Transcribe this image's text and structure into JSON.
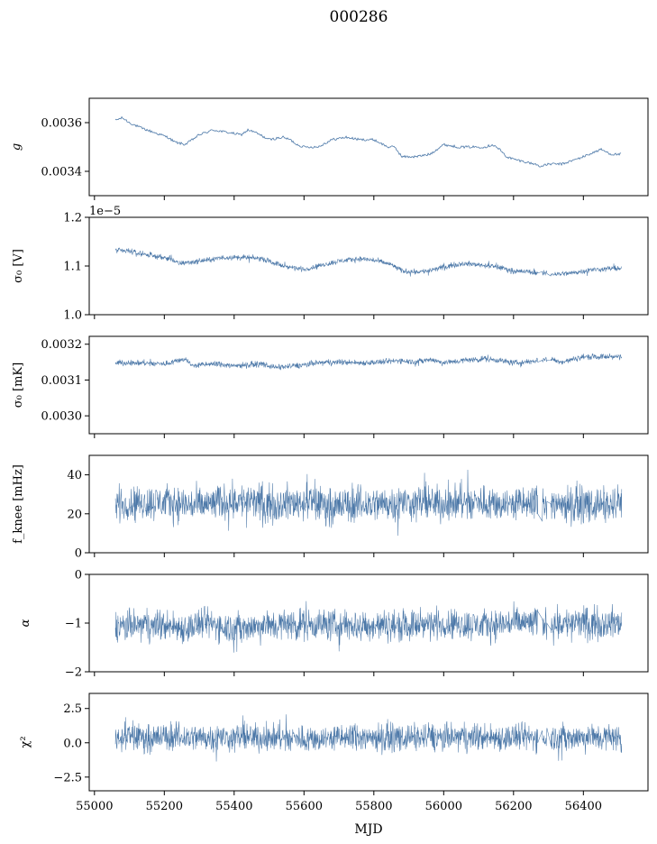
{
  "figure": {
    "title": "000286",
    "series_color": "#4c78a8",
    "gap_color": "#e8a0a0"
  },
  "chart_data": [
    {
      "id": "g",
      "type": "line",
      "ylabel": "g",
      "ylabel_italic": true,
      "ylim": [
        0.0033,
        0.0037
      ],
      "yticks": [
        0.0034,
        0.0036
      ],
      "ytick_labels": [
        "0.0034",
        "0.0036"
      ],
      "offset_text": "",
      "band": 5e-06,
      "spikes": 0,
      "keypoints": [
        [
          55060,
          0.00361
        ],
        [
          55080,
          0.00362
        ],
        [
          55100,
          0.0036
        ],
        [
          55130,
          0.00358
        ],
        [
          55170,
          0.00356
        ],
        [
          55210,
          0.00354
        ],
        [
          55230,
          0.00352
        ],
        [
          55260,
          0.00351
        ],
        [
          55300,
          0.00355
        ],
        [
          55340,
          0.00357
        ],
        [
          55380,
          0.00356
        ],
        [
          55420,
          0.00355
        ],
        [
          55440,
          0.00357
        ],
        [
          55460,
          0.00356
        ],
        [
          55500,
          0.00353
        ],
        [
          55540,
          0.00354
        ],
        [
          55560,
          0.00353
        ],
        [
          55580,
          0.00351
        ],
        [
          55600,
          0.0035
        ],
        [
          55640,
          0.0035
        ],
        [
          55680,
          0.00353
        ],
        [
          55720,
          0.00354
        ],
        [
          55760,
          0.00353
        ],
        [
          55800,
          0.00353
        ],
        [
          55840,
          0.0035
        ],
        [
          55860,
          0.0035
        ],
        [
          55880,
          0.00346
        ],
        [
          55920,
          0.00346
        ],
        [
          55960,
          0.00347
        ],
        [
          56000,
          0.00351
        ],
        [
          56040,
          0.0035
        ],
        [
          56080,
          0.0035
        ],
        [
          56120,
          0.0035
        ],
        [
          56140,
          0.00351
        ],
        [
          56160,
          0.00349
        ],
        [
          56180,
          0.00346
        ],
        [
          56200,
          0.00345
        ],
        [
          56260,
          0.00343
        ],
        [
          56280,
          0.00342
        ],
        [
          56300,
          0.00343
        ],
        [
          56340,
          0.00343
        ],
        [
          56400,
          0.00346
        ],
        [
          56450,
          0.00349
        ],
        [
          56480,
          0.00347
        ],
        [
          56510,
          0.00347
        ]
      ]
    },
    {
      "id": "sigma0_v",
      "type": "line",
      "ylabel": "σ₀ [V]",
      "ylim": [
        1.0,
        1.2
      ],
      "yticks": [
        1.0,
        1.1,
        1.2
      ],
      "ytick_labels": [
        "1.0",
        "1.1",
        "1.2"
      ],
      "offset_text": "1e−5",
      "band": 0.006,
      "spikes": 0.01,
      "keypoints": [
        [
          55060,
          1.132
        ],
        [
          55100,
          1.13
        ],
        [
          55160,
          1.122
        ],
        [
          55220,
          1.115
        ],
        [
          55240,
          1.105
        ],
        [
          55300,
          1.11
        ],
        [
          55380,
          1.118
        ],
        [
          55440,
          1.117
        ],
        [
          55480,
          1.115
        ],
        [
          55540,
          1.1
        ],
        [
          55600,
          1.093
        ],
        [
          55640,
          1.1
        ],
        [
          55700,
          1.11
        ],
        [
          55760,
          1.115
        ],
        [
          55800,
          1.112
        ],
        [
          55850,
          1.103
        ],
        [
          55880,
          1.09
        ],
        [
          55920,
          1.088
        ],
        [
          55960,
          1.09
        ],
        [
          56000,
          1.098
        ],
        [
          56050,
          1.105
        ],
        [
          56100,
          1.103
        ],
        [
          56160,
          1.097
        ],
        [
          56200,
          1.09
        ],
        [
          56260,
          1.087
        ],
        [
          56300,
          1.083
        ],
        [
          56360,
          1.085
        ],
        [
          56420,
          1.092
        ],
        [
          56480,
          1.095
        ],
        [
          56510,
          1.094
        ]
      ]
    },
    {
      "id": "sigma0_mk",
      "type": "line",
      "ylabel": "σ₀ [mK]",
      "ylim": [
        0.00295,
        0.003222
      ],
      "yticks": [
        0.003,
        0.0031,
        0.0032
      ],
      "ytick_labels": [
        "0.0030",
        "0.0031",
        "0.0032"
      ],
      "offset_text": "",
      "band": 9e-06,
      "spikes": 1e-05,
      "keypoints": [
        [
          55060,
          0.003148
        ],
        [
          55100,
          0.003148
        ],
        [
          55200,
          0.003145
        ],
        [
          55260,
          0.00316
        ],
        [
          55280,
          0.00314
        ],
        [
          55340,
          0.003145
        ],
        [
          55400,
          0.00314
        ],
        [
          55480,
          0.003145
        ],
        [
          55520,
          0.003135
        ],
        [
          55580,
          0.00314
        ],
        [
          55640,
          0.003148
        ],
        [
          55700,
          0.00315
        ],
        [
          55760,
          0.003148
        ],
        [
          55820,
          0.00315
        ],
        [
          55880,
          0.003155
        ],
        [
          55920,
          0.00315
        ],
        [
          55960,
          0.003158
        ],
        [
          56000,
          0.003148
        ],
        [
          56060,
          0.003155
        ],
        [
          56120,
          0.00316
        ],
        [
          56160,
          0.003155
        ],
        [
          56200,
          0.003148
        ],
        [
          56240,
          0.00315
        ],
        [
          56300,
          0.00316
        ],
        [
          56340,
          0.00315
        ],
        [
          56400,
          0.003165
        ],
        [
          56460,
          0.003165
        ],
        [
          56510,
          0.003165
        ]
      ]
    },
    {
      "id": "fknee",
      "type": "line",
      "ylabel": "f_knee [mHz]",
      "ylim": [
        0,
        50
      ],
      "yticks": [
        0,
        20,
        40
      ],
      "ytick_labels": [
        "0",
        "20",
        "40"
      ],
      "offset_text": "",
      "band": 10,
      "spikes": 14,
      "keypoints": [
        [
          55060,
          25
        ],
        [
          55200,
          26
        ],
        [
          55300,
          24
        ],
        [
          55400,
          27
        ],
        [
          55500,
          25
        ],
        [
          55600,
          26
        ],
        [
          55700,
          24
        ],
        [
          55800,
          25
        ],
        [
          55900,
          26
        ],
        [
          56000,
          25
        ],
        [
          56100,
          26
        ],
        [
          56200,
          25
        ],
        [
          56300,
          25
        ],
        [
          56400,
          25
        ],
        [
          56510,
          24
        ]
      ]
    },
    {
      "id": "alpha",
      "type": "line",
      "ylabel": "α",
      "ylabel_italic": true,
      "ylim": [
        -2,
        0
      ],
      "yticks": [
        -2,
        -1,
        0
      ],
      "ytick_labels": [
        "−2",
        "−1",
        "0"
      ],
      "offset_text": "",
      "band": 0.35,
      "spikes": 0.4,
      "keypoints": [
        [
          55060,
          -1.05
        ],
        [
          55200,
          -1.05
        ],
        [
          55260,
          -1.1
        ],
        [
          55320,
          -1.0
        ],
        [
          55400,
          -1.1
        ],
        [
          55500,
          -1.05
        ],
        [
          55600,
          -1.0
        ],
        [
          55700,
          -1.05
        ],
        [
          55800,
          -1.05
        ],
        [
          55900,
          -1.05
        ],
        [
          56000,
          -1.0
        ],
        [
          56100,
          -1.05
        ],
        [
          56200,
          -1.0
        ],
        [
          56300,
          -1.0
        ],
        [
          56400,
          -1.0
        ],
        [
          56510,
          -1.0
        ]
      ]
    },
    {
      "id": "chi2",
      "type": "line",
      "ylabel": "χ²",
      "ylim": [
        -3.5,
        3.6
      ],
      "yticks": [
        -2.5,
        0.0,
        2.5
      ],
      "ytick_labels": [
        "−2.5",
        "0.0",
        "2.5"
      ],
      "offset_text": "",
      "band": 1.1,
      "spikes": 1.4,
      "keypoints": [
        [
          55060,
          0.4
        ],
        [
          55200,
          0.4
        ],
        [
          55400,
          0.4
        ],
        [
          55600,
          0.3
        ],
        [
          55800,
          0.4
        ],
        [
          56000,
          0.4
        ],
        [
          56200,
          0.4
        ],
        [
          56400,
          0.4
        ],
        [
          56510,
          0.4
        ]
      ]
    }
  ],
  "x_axis": {
    "label": "MJD",
    "xlim": [
      54985,
      56585
    ],
    "ticks": [
      55000,
      55200,
      55400,
      55600,
      55800,
      56000,
      56200,
      56400
    ],
    "tick_labels": [
      "55000",
      "55200",
      "55400",
      "55600",
      "55800",
      "56000",
      "56200",
      "56400"
    ]
  }
}
